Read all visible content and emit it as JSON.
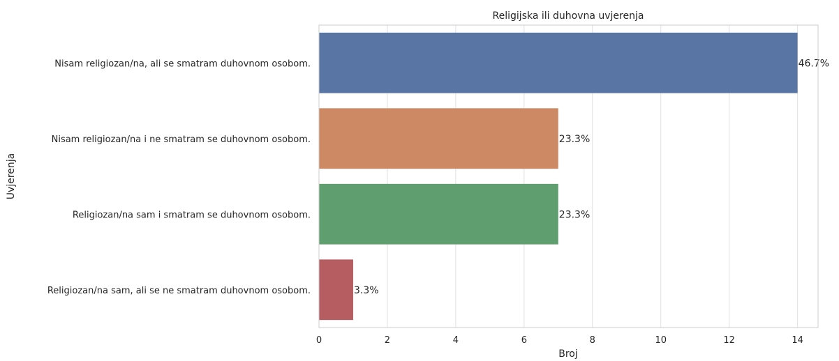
{
  "chart_data": {
    "type": "bar",
    "orientation": "horizontal",
    "title": "Religijska ili duhovna uvjerenja",
    "xlabel": "Broj",
    "ylabel": "Uvjerenja",
    "categories": [
      "Nisam religiozan/na, ali se smatram duhovnom osobom.",
      "Nisam religiozan/na i ne smatram se duhovnom osobom.",
      "Religiozan/na sam i smatram se duhovnom osobom.",
      "Religiozan/na sam, ali se ne smatram duhovnom osobom."
    ],
    "values": [
      14,
      7,
      7,
      1
    ],
    "data_labels": [
      "46.7%",
      "23.3%",
      "23.3%",
      "3.3%"
    ],
    "colors": [
      "#5875a4",
      "#cc8963",
      "#5f9e6e",
      "#b55d60"
    ],
    "xlim": [
      0,
      14.6
    ],
    "xticks": [
      0,
      2,
      4,
      6,
      8,
      10,
      12,
      14
    ],
    "xtick_labels": [
      "0",
      "2",
      "4",
      "6",
      "8",
      "10",
      "12",
      "14"
    ],
    "grid": true,
    "legend": "none"
  }
}
